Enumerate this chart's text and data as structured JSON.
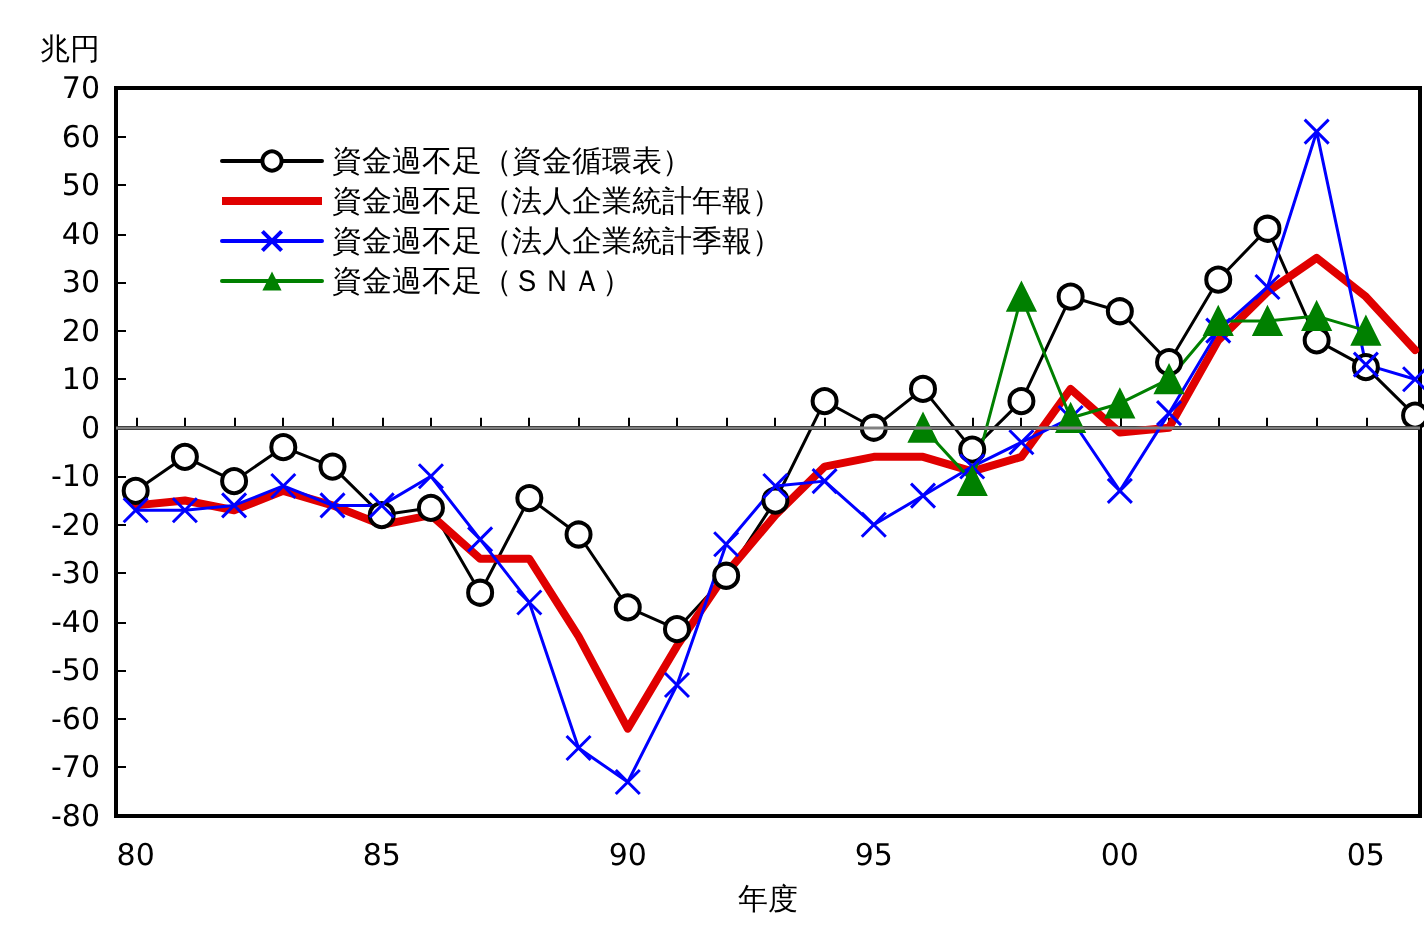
{
  "chart_data": {
    "type": "line",
    "xlabel": "年度",
    "ylabel": "兆円",
    "x": [
      1980,
      1981,
      1982,
      1983,
      1984,
      1985,
      1986,
      1987,
      1988,
      1989,
      1990,
      1991,
      1992,
      1993,
      1994,
      1995,
      1996,
      1997,
      1998,
      1999,
      2000,
      2001,
      2002,
      2003,
      2004,
      2005,
      2006
    ],
    "series": [
      {
        "name": "資金過不足（資金循環表）",
        "color": "#000000",
        "marker": "circle",
        "values": [
          -13,
          -6,
          -11,
          -4,
          -8,
          -18,
          -16.5,
          -34,
          -14.5,
          -22,
          -37,
          -41.5,
          -30.5,
          -15,
          5.5,
          0,
          8,
          -4.5,
          5.5,
          27,
          24,
          13.5,
          30.5,
          41,
          18,
          12.5,
          2.5
        ]
      },
      {
        "name": "資金過不足（法人企業統計年報）",
        "color": "#e00000",
        "marker": "none",
        "values": [
          -16,
          -15,
          -17,
          -13,
          -16,
          -20,
          -18,
          -27,
          -27,
          -43,
          -62,
          -45,
          -30,
          -18,
          -8,
          -6,
          -6,
          -9,
          -6,
          8,
          -1,
          0,
          18,
          28,
          35,
          27,
          16
        ]
      },
      {
        "name": "資金過不足（法人企業統計季報）",
        "color": "#0000ff",
        "marker": "cross",
        "values": [
          -17,
          -17,
          -16,
          -12,
          -16,
          -16,
          -10,
          -23,
          -36,
          -66,
          -73,
          -53,
          -24,
          -12,
          -11,
          -20,
          -14,
          -8,
          -3,
          2,
          -13,
          3,
          20,
          29,
          61,
          13,
          10
        ]
      },
      {
        "name": "資金過不足（ＳＮＡ）",
        "color": "#008000",
        "marker": "triangle",
        "values": [
          null,
          null,
          null,
          null,
          null,
          null,
          null,
          null,
          null,
          null,
          null,
          null,
          null,
          null,
          null,
          null,
          0,
          -11,
          27,
          2,
          5,
          10,
          22,
          22,
          23,
          20,
          null
        ]
      }
    ],
    "xlim": [
      1979.6,
      2006.1
    ],
    "xticks": [
      {
        "value": 1980,
        "label": "80"
      },
      {
        "value": 1981,
        "label": null
      },
      {
        "value": 1982,
        "label": null
      },
      {
        "value": 1983,
        "label": null
      },
      {
        "value": 1984,
        "label": null
      },
      {
        "value": 1985,
        "label": "85"
      },
      {
        "value": 1986,
        "label": null
      },
      {
        "value": 1987,
        "label": null
      },
      {
        "value": 1988,
        "label": null
      },
      {
        "value": 1989,
        "label": null
      },
      {
        "value": 1990,
        "label": "90"
      },
      {
        "value": 1991,
        "label": null
      },
      {
        "value": 1992,
        "label": null
      },
      {
        "value": 1993,
        "label": null
      },
      {
        "value": 1994,
        "label": null
      },
      {
        "value": 1995,
        "label": "95"
      },
      {
        "value": 1996,
        "label": null
      },
      {
        "value": 1997,
        "label": null
      },
      {
        "value": 1998,
        "label": null
      },
      {
        "value": 1999,
        "label": null
      },
      {
        "value": 2000,
        "label": "00"
      },
      {
        "value": 2001,
        "label": null
      },
      {
        "value": 2002,
        "label": null
      },
      {
        "value": 2003,
        "label": null
      },
      {
        "value": 2004,
        "label": null
      },
      {
        "value": 2005,
        "label": "05"
      },
      {
        "value": 2006,
        "label": null
      }
    ],
    "ylim": [
      -80,
      70
    ],
    "yticks": [
      -80,
      -70,
      -60,
      -50,
      -40,
      -30,
      -20,
      -10,
      0,
      10,
      20,
      30,
      40,
      50,
      60,
      70
    ],
    "ref_lines": [
      {
        "axis": "y",
        "value": 0,
        "label": null,
        "color": "#808080"
      }
    ],
    "grid": false,
    "legend": "top left"
  }
}
